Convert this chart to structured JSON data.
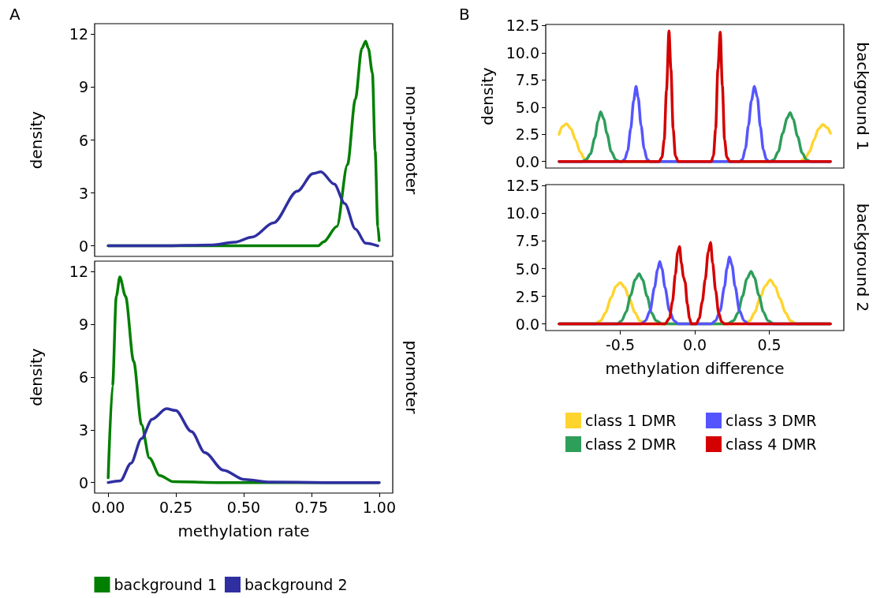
{
  "chart_data": [
    {
      "type": "line",
      "title": "A",
      "ylabel": "density",
      "annotations": [
        "non-promoter"
      ],
      "tick_labels": "y",
      "xlim": [
        -0.05,
        1.05
      ],
      "ylim": [
        -0.6,
        12.6
      ],
      "yticks": [
        0,
        3,
        6,
        9,
        12
      ],
      "series": [
        {
          "color": "#007f00",
          "x": [
            0,
            0.2,
            0.4,
            0.6,
            0.775,
            0.795,
            0.844,
            0.883,
            0.912,
            0.936,
            0.95,
            0.96,
            0.975,
            0.985,
            0.995,
            1.0
          ],
          "values": [
            0,
            0,
            0,
            0,
            0,
            0.23,
            1.1,
            4.6,
            8.3,
            11.2,
            11.6,
            11.2,
            9.8,
            5.4,
            1.1,
            0.3
          ]
        },
        {
          "color": "#2f2fa1",
          "x": [
            0,
            0.2,
            0.386,
            0.464,
            0.532,
            0.61,
            0.698,
            0.756,
            0.785,
            0.834,
            0.873,
            0.912,
            0.95,
            0.995
          ],
          "values": [
            0,
            0,
            0.05,
            0.2,
            0.5,
            1.3,
            3.1,
            4.1,
            4.2,
            3.5,
            2.4,
            0.96,
            0.15,
            0
          ]
        }
      ]
    },
    {
      "type": "line",
      "ylabel": "density",
      "xlabel": "methylation rate",
      "annotations": [
        "promoter"
      ],
      "legend": "bottom",
      "xlim": [
        -0.05,
        1.05
      ],
      "ylim": [
        -0.6,
        12.6
      ],
      "yticks": [
        0,
        3,
        6,
        9,
        12
      ],
      "xticks": [
        {
          "value": 0,
          "label": "0.00"
        },
        {
          "value": 0.25,
          "label": "0.25"
        },
        {
          "value": 0.5,
          "label": "0.50"
        },
        {
          "value": 0.75,
          "label": "0.75"
        },
        {
          "value": 1,
          "label": "1.00"
        }
      ],
      "series": [
        {
          "name": "background 1",
          "color": "#007f00",
          "x": [
            0,
            0.016,
            0.03,
            0.043,
            0.064,
            0.094,
            0.123,
            0.152,
            0.19,
            0.24,
            0.4,
            0.6,
            0.8,
            1.0
          ],
          "values": [
            0.27,
            5.5,
            10.6,
            11.7,
            10.6,
            6.9,
            3.3,
            1.4,
            0.4,
            0.05,
            0,
            0,
            0,
            0
          ]
        },
        {
          "name": "background 2",
          "color": "#2f2fa1",
          "x": [
            0,
            0.045,
            0.084,
            0.123,
            0.162,
            0.215,
            0.249,
            0.307,
            0.357,
            0.425,
            0.503,
            0.6,
            0.8,
            1.0
          ],
          "values": [
            0,
            0.1,
            1.1,
            2.5,
            3.6,
            4.2,
            4.1,
            2.9,
            1.7,
            0.7,
            0.17,
            0.03,
            0,
            0
          ]
        }
      ]
    },
    {
      "type": "line",
      "title": "B",
      "ylabel": "density",
      "annotations": [
        "background 1"
      ],
      "tick_labels": "y",
      "xlim": [
        -1,
        1
      ],
      "ylim": [
        -0.6,
        12.6
      ],
      "yticks": [
        {
          "value": 0,
          "label": "0.0"
        },
        {
          "value": 2.5,
          "label": "2.5"
        },
        {
          "value": 5,
          "label": "5.0"
        },
        {
          "value": 7.5,
          "label": "7.5"
        },
        {
          "value": 10,
          "label": "10.0"
        },
        {
          "value": 12.5,
          "label": "12.5"
        }
      ],
      "series": [
        {
          "color": "#ffd42e",
          "x": [
            -0.91,
            -0.89,
            -0.86,
            -0.83,
            -0.8,
            -0.77,
            -0.74,
            -0.71,
            -0.68,
            0.68,
            0.71,
            0.74,
            0.77,
            0.8,
            0.83,
            0.86,
            0.89,
            0.91
          ],
          "values": [
            2.5,
            3.2,
            3.46,
            3.0,
            2.0,
            0.9,
            0.25,
            0.03,
            null,
            null,
            0.03,
            0.25,
            0.9,
            2.0,
            3.0,
            3.4,
            3.1,
            2.6
          ]
        },
        {
          "color": "#2e9e5b",
          "x": [
            -0.91,
            -0.76,
            -0.73,
            -0.7,
            -0.67,
            -0.65,
            -0.632,
            -0.61,
            -0.59,
            -0.56,
            -0.53,
            -0.5,
            0.5,
            0.53,
            0.56,
            0.59,
            0.62,
            0.64,
            0.66,
            0.69,
            0.72,
            0.75,
            0.78,
            0.91
          ],
          "values": [
            0,
            0,
            0.15,
            0.7,
            2.2,
            3.7,
            4.57,
            3.9,
            2.6,
            0.9,
            0.15,
            0,
            0,
            0.15,
            0.9,
            2.6,
            4.0,
            4.5,
            3.9,
            2.3,
            0.8,
            0.15,
            0,
            0
          ]
        },
        {
          "color": "#5555ff",
          "x": [
            -0.91,
            -0.49,
            -0.47,
            -0.45,
            -0.43,
            -0.41,
            -0.394,
            -0.38,
            -0.36,
            -0.34,
            -0.32,
            -0.3,
            0.3,
            0.32,
            0.34,
            0.36,
            0.38,
            0.4,
            0.42,
            0.44,
            0.46,
            0.48,
            0.5,
            0.91
          ],
          "values": [
            0,
            0,
            0.2,
            1.0,
            3.0,
            5.6,
            6.9,
            5.9,
            3.3,
            1.2,
            0.2,
            0,
            0,
            0.2,
            1.2,
            3.3,
            5.6,
            6.9,
            5.9,
            3.2,
            1.1,
            0.2,
            0,
            0
          ]
        },
        {
          "color": "#d40000",
          "x": [
            -0.91,
            -0.24,
            -0.22,
            -0.205,
            -0.19,
            -0.173,
            -0.16,
            -0.145,
            -0.13,
            -0.11,
            0.11,
            0.125,
            0.14,
            0.155,
            0.171,
            0.185,
            0.2,
            0.215,
            0.235,
            0.91
          ],
          "values": [
            0,
            0,
            0.4,
            2.0,
            6.5,
            12.0,
            8.5,
            3.0,
            0.5,
            0,
            0,
            0.5,
            3.0,
            8.5,
            11.9,
            7.0,
            2.0,
            0.4,
            0,
            0
          ]
        }
      ]
    },
    {
      "type": "line",
      "xlabel": "methylation difference",
      "annotations": [
        "background 2"
      ],
      "legend": "bottom",
      "xlim": [
        -1,
        1
      ],
      "ylim": [
        -0.6,
        12.6
      ],
      "yticks": [
        {
          "value": 0,
          "label": "0.0"
        },
        {
          "value": 2.5,
          "label": "2.5"
        },
        {
          "value": 5,
          "label": "5.0"
        },
        {
          "value": 7.5,
          "label": "7.5"
        },
        {
          "value": 10,
          "label": "10.0"
        },
        {
          "value": 12.5,
          "label": "12.5"
        }
      ],
      "xticks": [
        {
          "value": -0.5,
          "label": "-0.5"
        },
        {
          "value": 0,
          "label": "0.0"
        },
        {
          "value": 0.5,
          "label": "0.5"
        }
      ],
      "series": [
        {
          "name": "class 1 DMR",
          "color": "#ffd42e",
          "x": [
            -0.91,
            -0.67,
            -0.63,
            -0.6,
            -0.56,
            -0.53,
            -0.5,
            -0.47,
            -0.44,
            -0.4,
            -0.37,
            -0.33,
            0.33,
            0.37,
            0.4,
            0.44,
            0.47,
            0.507,
            0.54,
            0.57,
            0.61,
            0.64,
            0.68,
            0.91
          ],
          "values": [
            0,
            0,
            0.3,
            1.0,
            2.4,
            3.4,
            3.74,
            3.3,
            2.3,
            1.0,
            0.3,
            0,
            0,
            0.3,
            1.0,
            2.4,
            3.4,
            3.98,
            3.4,
            2.3,
            1.0,
            0.3,
            0,
            0
          ]
        },
        {
          "name": "class 2 DMR",
          "color": "#2e9e5b",
          "x": [
            -0.91,
            -0.52,
            -0.49,
            -0.46,
            -0.43,
            -0.4,
            -0.373,
            -0.35,
            -0.32,
            -0.29,
            -0.26,
            -0.22,
            0.22,
            0.26,
            0.29,
            0.32,
            0.35,
            0.378,
            0.4,
            0.43,
            0.46,
            0.49,
            0.53,
            0.91
          ],
          "values": [
            0,
            0,
            0.3,
            1.1,
            2.6,
            4.0,
            4.53,
            4.0,
            2.5,
            1.0,
            0.3,
            0,
            0,
            0.3,
            1.0,
            2.5,
            4.1,
            4.76,
            4.2,
            2.6,
            1.1,
            0.3,
            0,
            0
          ]
        },
        {
          "name": "class 3 DMR",
          "color": "#5555ff",
          "x": [
            -0.91,
            -0.36,
            -0.33,
            -0.3,
            -0.27,
            -0.25,
            -0.235,
            -0.22,
            -0.2,
            -0.17,
            -0.14,
            -0.11,
            0.11,
            0.14,
            0.17,
            0.2,
            0.215,
            0.233,
            0.25,
            0.27,
            0.3,
            0.33,
            0.36,
            0.91
          ],
          "values": [
            0,
            0,
            0.3,
            1.2,
            3.3,
            4.9,
            5.64,
            5.0,
            3.3,
            1.2,
            0.3,
            0,
            0,
            0.3,
            1.2,
            3.4,
            5.0,
            6.05,
            5.3,
            3.4,
            1.2,
            0.3,
            0,
            0
          ]
        },
        {
          "name": "class 4 DMR",
          "color": "#d40000",
          "x": [
            -0.91,
            -0.2,
            -0.17,
            -0.15,
            -0.13,
            -0.115,
            -0.102,
            -0.09,
            -0.075,
            -0.065,
            -0.05,
            -0.035,
            -0.023,
            0.01,
            0.03,
            0.05,
            0.07,
            0.09,
            0.106,
            0.12,
            0.14,
            0.16,
            0.18,
            0.2,
            0.91
          ],
          "values": [
            0,
            0,
            0.5,
            2.0,
            4.5,
            6.5,
            7.0,
            5.5,
            4.2,
            3.8,
            1.8,
            0.5,
            0,
            0,
            0.5,
            2.0,
            4.0,
            6.5,
            7.38,
            5.5,
            3.0,
            1.0,
            0.2,
            0,
            0
          ]
        }
      ]
    }
  ]
}
